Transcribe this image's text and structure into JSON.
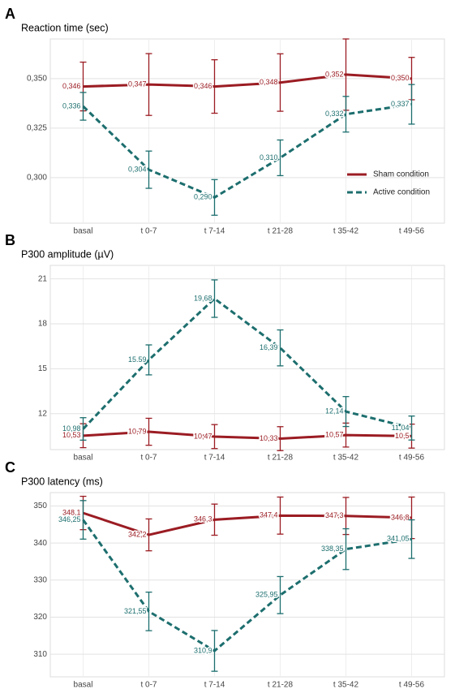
{
  "chart_data": [
    {
      "type": "line",
      "panel": "A",
      "title": "Reaction time (sec)",
      "categories": [
        "basal",
        "t 0-7",
        "t 7-14",
        "t 21-28",
        "t 35-42",
        "t 49-56"
      ],
      "series": [
        {
          "name": "Sham condition",
          "color": "#9b1c23",
          "dashed": false,
          "values": [
            0.346,
            0.347,
            0.346,
            0.348,
            0.352,
            0.35
          ],
          "value_labels": [
            "0,346",
            "0,347",
            "0,346",
            "0,348",
            "0,352",
            "0,350"
          ],
          "errors": [
            0.0123,
            0.0156,
            0.0135,
            0.0145,
            0.018,
            0.0107
          ]
        },
        {
          "name": "Active condition",
          "color": "#1d6e6e",
          "dashed": true,
          "values": [
            0.336,
            0.304,
            0.29,
            0.31,
            0.332,
            0.337
          ],
          "value_labels": [
            "0,336",
            "0,304",
            "0,290",
            "0,310",
            "0,332",
            "0,337"
          ],
          "errors": [
            0.007,
            0.0094,
            0.009,
            0.009,
            0.009,
            0.01
          ]
        }
      ],
      "ylim": [
        0.277,
        0.37
      ],
      "yticks": [
        {
          "value": 0.3,
          "label": "0,300"
        },
        {
          "value": 0.325,
          "label": "0,325"
        },
        {
          "value": 0.35,
          "label": "0,350"
        }
      ],
      "grid": true,
      "legend": "lower right"
    },
    {
      "type": "line",
      "panel": "B",
      "title": "P300  amplitude (µV)",
      "categories": [
        "basal",
        "t 0-7",
        "t 7-14",
        "t 21-28",
        "t 35-42",
        "t 49-56"
      ],
      "series": [
        {
          "name": "Sham condition",
          "color": "#9b1c23",
          "dashed": false,
          "values": [
            10.53,
            10.79,
            10.47,
            10.33,
            10.57,
            10.5
          ],
          "value_labels": [
            "10,53",
            "10,79",
            "10,47",
            "10,33",
            "10,57",
            "10,5"
          ],
          "errors": [
            0.8,
            0.9,
            0.8,
            0.8,
            0.8,
            0.8
          ]
        },
        {
          "name": "Active condition",
          "color": "#1d6e6e",
          "dashed": true,
          "values": [
            10.98,
            15.59,
            19.68,
            16.39,
            12.14,
            11.04
          ],
          "value_labels": [
            "10,98",
            "15.59",
            "19,68",
            "16,39",
            "12,14",
            "11,04"
          ],
          "errors": [
            0.75,
            1.0,
            1.25,
            1.2,
            1.0,
            0.8
          ]
        }
      ],
      "ylim": [
        9.6,
        21.9
      ],
      "yticks": [
        12,
        15,
        18,
        21
      ],
      "grid": true
    },
    {
      "type": "line",
      "panel": "C",
      "title": "P300  latency (ms)",
      "categories": [
        "basal",
        "t 0-7",
        "t 7-14",
        "t 21-28",
        "t 35-42",
        "t 49-56"
      ],
      "series": [
        {
          "name": "Sham condition",
          "color": "#9b1c23",
          "dashed": false,
          "values": [
            348.1,
            342.2,
            346.3,
            347.4,
            347.3,
            346.8
          ],
          "value_labels": [
            "348,1",
            "342,2",
            "346,3",
            "347,4",
            "347,3",
            "346,8"
          ],
          "errors": [
            4.5,
            4.3,
            4.2,
            5.0,
            5.0,
            5.6
          ]
        },
        {
          "name": "Active condition",
          "color": "#1d6e6e",
          "dashed": true,
          "values": [
            346.25,
            321.55,
            310.9,
            325.95,
            338.35,
            341.05
          ],
          "value_labels": [
            "346,25",
            "321,55",
            "310,9",
            "325,95",
            "338,35",
            "341,05"
          ],
          "errors": [
            5.2,
            5.2,
            5.5,
            5.0,
            5.5,
            5.2
          ]
        }
      ],
      "ylim": [
        303.9,
        353.6
      ],
      "yticks": [
        310,
        320,
        330,
        340,
        350
      ],
      "grid": true
    }
  ]
}
